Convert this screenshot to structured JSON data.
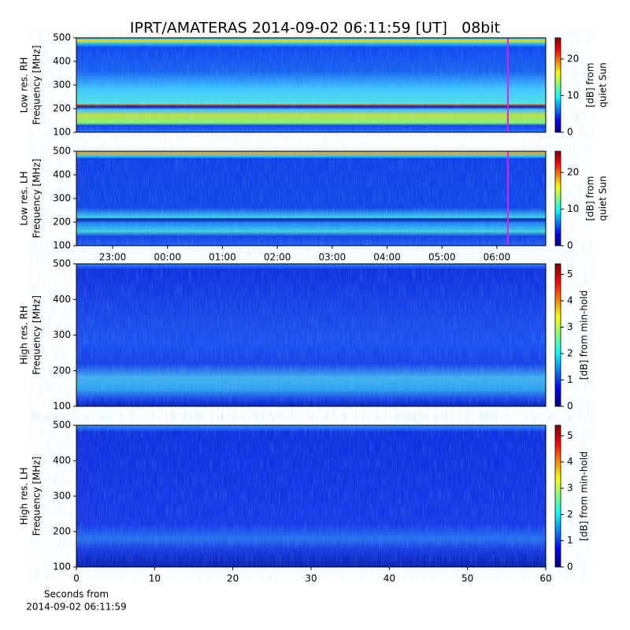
{
  "title": "IPRT/AMATERAS 2014-09-02 06:11:59 [UT]   08bit",
  "chart_data": [
    {
      "type": "heatmap",
      "ylabel": [
        "Low res. RH",
        "Frequency [MHz]"
      ],
      "ylim": [
        100,
        500
      ],
      "yticks": [
        100,
        200,
        300,
        400,
        500
      ],
      "xlim": [
        -1.66,
        6.89
      ],
      "marker_x": 6.2,
      "marker_color": "#e020e0",
      "colorbar": {
        "label": [
          "[dB] from",
          "quiet Sun"
        ],
        "clim": [
          0,
          25.8
        ],
        "ticks": [
          0,
          10,
          20
        ]
      }
    },
    {
      "type": "heatmap",
      "ylabel": [
        "Low res. LH",
        "Frequency [MHz]"
      ],
      "ylim": [
        100,
        500
      ],
      "yticks": [
        100,
        200,
        300,
        400,
        500
      ],
      "xlim": [
        -1.66,
        6.89
      ],
      "marker_x": 6.2,
      "marker_color": "#e020e0",
      "xticks": [
        {
          "value": -1,
          "label": "23:00"
        },
        {
          "value": 0,
          "label": "00:00"
        },
        {
          "value": 1,
          "label": "01:00"
        },
        {
          "value": 2,
          "label": "02:00"
        },
        {
          "value": 3,
          "label": "03:00"
        },
        {
          "value": 4,
          "label": "04:00"
        },
        {
          "value": 5,
          "label": "05:00"
        },
        {
          "value": 6,
          "label": "06:00"
        }
      ],
      "colorbar": {
        "label": [
          "[dB] from",
          "quiet Sun"
        ],
        "clim": [
          0,
          25.8
        ],
        "ticks": [
          0,
          10,
          20
        ]
      }
    },
    {
      "type": "heatmap",
      "ylabel": [
        "High res. RH",
        "Frequency [MHz]"
      ],
      "ylim": [
        100,
        500
      ],
      "yticks": [
        100,
        200,
        300,
        400,
        500
      ],
      "xlim": [
        0,
        60
      ],
      "colorbar": {
        "label": [
          "[dB] from min-hold"
        ],
        "clim": [
          0,
          5.4
        ],
        "ticks": [
          0,
          1,
          2,
          3,
          4,
          5
        ]
      }
    },
    {
      "type": "heatmap",
      "ylabel": [
        "High res. LH",
        "Frequency [MHz]"
      ],
      "ylim": [
        100,
        500
      ],
      "yticks": [
        100,
        200,
        300,
        400,
        500
      ],
      "xlim": [
        0,
        60
      ],
      "xticks": [
        0,
        10,
        20,
        30,
        40,
        50,
        60
      ],
      "xlabel": [
        "Seconds from",
        "2014-09-02 06:11:59"
      ],
      "colorbar": {
        "label": [
          "[dB] from min-hold"
        ],
        "clim": [
          0,
          5.4
        ],
        "ticks": [
          0,
          1,
          2,
          3,
          4,
          5
        ]
      }
    }
  ]
}
